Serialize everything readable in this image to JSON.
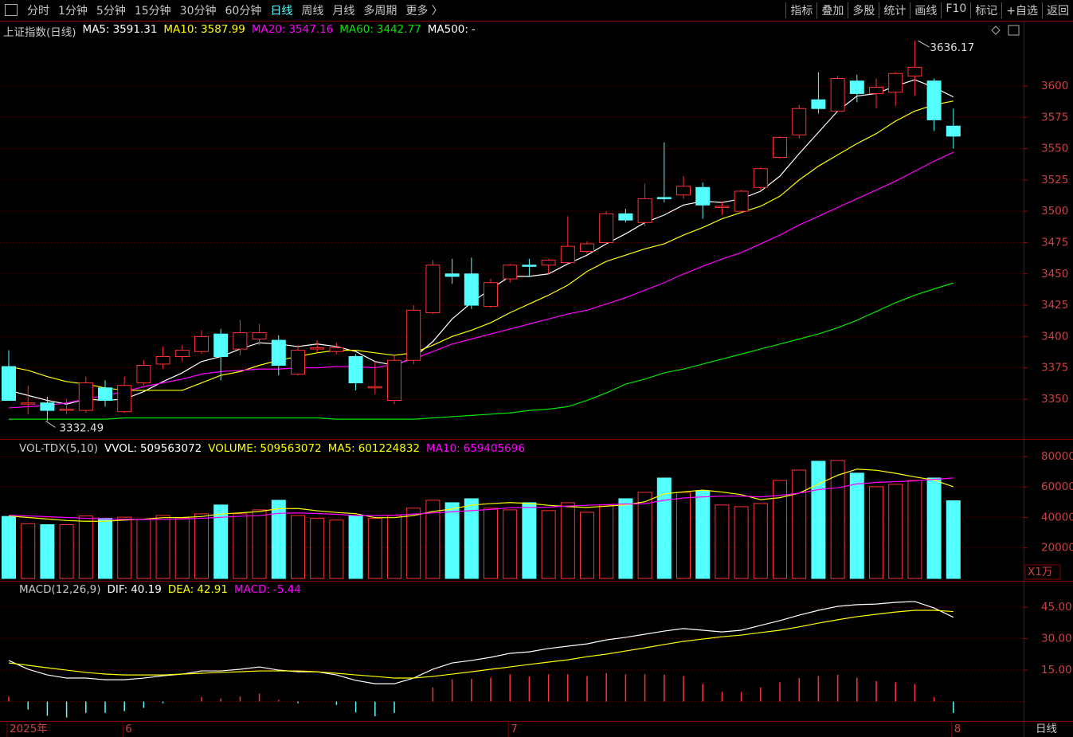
{
  "toolbar": {
    "tabs": [
      "分时",
      "1分钟",
      "5分钟",
      "15分钟",
      "30分钟",
      "60分钟",
      "日线",
      "周线",
      "月线",
      "多周期",
      "更多 〉"
    ],
    "tools": [
      "指标",
      "叠加",
      "多股",
      "统计",
      "画线",
      "F10",
      "标记",
      "+自选",
      "返回"
    ]
  },
  "status": "日线",
  "chart_data": [
    {
      "type": "candlestick",
      "title": "上证指数(日线)",
      "up_color": "#ff3232",
      "down_color": "#54ffff",
      "open": [
        3376,
        3346,
        3347,
        3341,
        3341,
        3359,
        3340,
        3363,
        3378,
        3384,
        3388,
        3402,
        3390,
        3398,
        3397,
        3370,
        3390,
        3388,
        3384,
        3359,
        3349,
        3381,
        3419,
        3450,
        3450,
        3424,
        3446,
        3457,
        3457,
        3459,
        3468,
        3475,
        3498,
        3491,
        3511,
        3513,
        3519,
        3503,
        3500,
        3519,
        3543,
        3561,
        3589,
        3580,
        3604,
        3594,
        3595,
        3608,
        3604,
        3568
      ],
      "high": [
        3389,
        3361,
        3352,
        3350,
        3368,
        3365,
        3368,
        3381,
        3392,
        3393,
        3405,
        3406,
        3413,
        3410,
        3401,
        3393,
        3397,
        3395,
        3386,
        3380,
        3385,
        3425,
        3461,
        3462,
        3463,
        3446,
        3458,
        3462,
        3462,
        3496,
        3476,
        3500,
        3502,
        3522,
        3555,
        3528,
        3523,
        3508,
        3517,
        3535,
        3560,
        3585,
        3611,
        3608,
        3609,
        3606,
        3611,
        3636.17,
        3606,
        3582
      ],
      "low": [
        3349,
        3338,
        3332.49,
        3338,
        3339,
        3344,
        3339,
        3361,
        3374,
        3380,
        3386,
        3365,
        3385,
        3393,
        3369,
        3369,
        3387,
        3386,
        3357,
        3354,
        3346,
        3378,
        3418,
        3442,
        3422,
        3423,
        3443,
        3448,
        3450,
        3458,
        3466,
        3474,
        3491,
        3488,
        3507,
        3510,
        3494,
        3497,
        3499,
        3517,
        3542,
        3558,
        3578,
        3579,
        3587,
        3582,
        3584,
        3592,
        3564,
        3550
      ],
      "close": [
        3349,
        3347,
        3341,
        3342,
        3363,
        3349,
        3361,
        3377,
        3384,
        3389,
        3400,
        3384,
        3403,
        3403,
        3377,
        3389,
        3391,
        3391,
        3363,
        3360,
        3381,
        3421,
        3457,
        3448,
        3425,
        3443,
        3457,
        3456,
        3461,
        3472,
        3474,
        3498,
        3493,
        3510,
        3510,
        3520,
        3505,
        3504,
        3516,
        3534,
        3559,
        3582,
        3582,
        3606,
        3594,
        3599,
        3610,
        3615,
        3573,
        3560
      ],
      "series": [
        {
          "name": "MA5:",
          "color": "#ffffff",
          "latest": 3591.31,
          "values": [
            3357,
            3353,
            3349,
            3346,
            3350,
            3349,
            3350,
            3356,
            3364,
            3371,
            3380,
            3384,
            3390,
            3395,
            3394,
            3392,
            3394,
            3392,
            3388,
            3380,
            3377,
            3383,
            3396,
            3414,
            3427,
            3438,
            3448,
            3448,
            3450,
            3458,
            3465,
            3474,
            3482,
            3491,
            3497,
            3505,
            3508,
            3507,
            3510,
            3516,
            3528,
            3546,
            3563,
            3580,
            3592,
            3594,
            3600,
            3605,
            3599,
            3591.31
          ]
        },
        {
          "name": "MA10:",
          "color": "#ffff00",
          "latest": 3587.99,
          "values": [
            3376,
            3373,
            3368,
            3364,
            3362,
            3359,
            3357,
            3357,
            3357,
            3357,
            3363,
            3369,
            3372,
            3377,
            3381,
            3384,
            3387,
            3389,
            3389,
            3387,
            3385,
            3387,
            3393,
            3400,
            3405,
            3411,
            3419,
            3426,
            3433,
            3441,
            3452,
            3460,
            3465,
            3470,
            3474,
            3481,
            3487,
            3494,
            3499,
            3504,
            3512,
            3525,
            3536,
            3545,
            3554,
            3562,
            3572,
            3580,
            3585,
            3587.99
          ]
        },
        {
          "name": "MA20:",
          "color": "#ff00ff",
          "latest": 3547.16,
          "values": [
            3343,
            3344,
            3345,
            3347,
            3350,
            3353,
            3356,
            3360,
            3363,
            3366,
            3370,
            3372,
            3373,
            3374,
            3374,
            3375,
            3375,
            3376,
            3376,
            3375,
            3378,
            3382,
            3388,
            3394,
            3398,
            3402,
            3406,
            3410,
            3414,
            3418,
            3421,
            3426,
            3431,
            3437,
            3443,
            3450,
            3456,
            3462,
            3467,
            3474,
            3481,
            3489,
            3496,
            3503,
            3510,
            3517,
            3524,
            3532,
            3540,
            3547.16
          ]
        },
        {
          "name": "MA60:",
          "color": "#00e600",
          "latest": 3442.77,
          "values": [
            3334,
            3334,
            3334,
            3334,
            3334,
            3334,
            3335,
            3335,
            3335,
            3335,
            3335,
            3335,
            3335,
            3335,
            3335,
            3335,
            3335,
            3334,
            3334,
            3334,
            3334,
            3334,
            3335,
            3336,
            3337,
            3338,
            3339,
            3341,
            3342,
            3344,
            3349,
            3355,
            3362,
            3366,
            3371,
            3374,
            3378,
            3382,
            3386,
            3390,
            3394,
            3398,
            3402,
            3407,
            3413,
            3420,
            3427,
            3433,
            3438,
            3442.77
          ]
        }
      ],
      "legend_after": [
        {
          "label": "MA500:",
          "value_label": "-",
          "color": "#ffffff"
        }
      ],
      "ylim": [
        3318.8,
        3651.5
      ],
      "yticks": [
        3350,
        3375,
        3400,
        3425,
        3450,
        3475,
        3500,
        3525,
        3550,
        3575,
        3600
      ],
      "grid": true
    },
    {
      "type": "bar",
      "title": "VOL-TDX(5,10)",
      "unit_label": "X1万",
      "values": [
        40700,
        35900,
        35300,
        35300,
        41000,
        39400,
        40200,
        38700,
        41300,
        39700,
        42400,
        48200,
        42400,
        45000,
        51300,
        41300,
        39400,
        38300,
        41300,
        39400,
        41300,
        46100,
        51300,
        49700,
        52300,
        46100,
        45000,
        49700,
        44500,
        49700,
        43400,
        48200,
        52300,
        56500,
        65900,
        56500,
        57600,
        48200,
        47100,
        49200,
        64300,
        71100,
        76900,
        77400,
        69100,
        60200,
        61800,
        64300,
        65900,
        50956
      ],
      "legend_before": [
        {
          "label": "VVOL:",
          "value": 509563072,
          "color": "#ffffff"
        },
        {
          "label": "VOLUME:",
          "value": 509563072,
          "color": "#ffff00"
        }
      ],
      "series": [
        {
          "name": "MA5:",
          "color": "#ffff00",
          "latest": 601224832,
          "values": [
            41000,
            40000,
            39000,
            38000,
            37500,
            37500,
            38300,
            38900,
            39900,
            40000,
            40600,
            42300,
            43000,
            43900,
            45800,
            45900,
            44400,
            43300,
            42500,
            39900,
            39900,
            41300,
            43900,
            45600,
            48100,
            49100,
            49800,
            49200,
            48000,
            47100,
            46600,
            47400,
            48300,
            50300,
            55500,
            56800,
            58000,
            56700,
            55000,
            51700,
            53000,
            56000,
            61900,
            67700,
            71700,
            71000,
            69000,
            66600,
            64600,
            60122
          ]
        },
        {
          "name": "MA10:",
          "color": "#ff00ff",
          "latest": 659405696,
          "values": [
            41500,
            41000,
            40500,
            40000,
            39500,
            39000,
            38800,
            38700,
            38800,
            39000,
            39500,
            40100,
            40800,
            41200,
            42700,
            43000,
            42600,
            42100,
            41300,
            41300,
            41500,
            42200,
            43000,
            43700,
            44500,
            45300,
            46400,
            46600,
            46800,
            47500,
            48000,
            48400,
            48800,
            49000,
            51300,
            52800,
            53500,
            54000,
            54000,
            53500,
            54500,
            56000,
            58300,
            59500,
            62000,
            63000,
            63500,
            64000,
            65000,
            65941
          ]
        }
      ],
      "ylim": [
        0,
        90435
      ],
      "yticks": [
        20000,
        40000,
        60000,
        80000
      ]
    },
    {
      "type": "line",
      "title": "MACD(12,26,9)",
      "series": [
        {
          "name": "DIF:",
          "color": "#ffffff",
          "latest": 40.19,
          "values": [
            19.6,
            15.4,
            12.7,
            11.2,
            11.2,
            10.4,
            10.4,
            11.2,
            12.3,
            13.1,
            14.6,
            14.6,
            15.4,
            16.5,
            15,
            14.2,
            14.2,
            12.7,
            10.1,
            8.5,
            8.5,
            11.2,
            15.4,
            18.4,
            19.6,
            21.1,
            23,
            23.7,
            25.3,
            26.4,
            27.5,
            29.4,
            30.6,
            32.1,
            33.6,
            34.8,
            34,
            33.2,
            34,
            36.3,
            38.6,
            41.2,
            43.5,
            45.4,
            46.2,
            46.5,
            47.3,
            47.7,
            44.6,
            40.19
          ]
        },
        {
          "name": "DEA:",
          "color": "#ffff00",
          "latest": 42.91,
          "values": [
            18.4,
            17.3,
            16.1,
            15,
            13.9,
            13.1,
            12.7,
            12.7,
            12.7,
            13.1,
            13.5,
            13.9,
            14.2,
            14.6,
            14.6,
            14.6,
            14.2,
            13.5,
            12.7,
            12,
            11.2,
            11.2,
            12,
            13.1,
            14.2,
            15.4,
            16.5,
            17.7,
            18.8,
            19.9,
            21.4,
            22.6,
            24.1,
            25.6,
            27.2,
            28.7,
            29.8,
            30.9,
            31.7,
            32.9,
            34,
            35.6,
            37.4,
            39,
            40.5,
            41.6,
            42.7,
            43.5,
            43.5,
            42.91
          ]
        }
      ],
      "bars": {
        "name": "MACD:",
        "color": "#ff00ff",
        "latest": -5.44,
        "up_color": "#ff3232",
        "down_color": "#54ffff",
        "values": [
          2.4,
          -3.8,
          -6.8,
          -7.6,
          -5.4,
          -5.4,
          -4.6,
          -3,
          -0.8,
          0,
          2.2,
          1.4,
          2.4,
          3.8,
          0.8,
          -0.8,
          0,
          -1.6,
          -5.2,
          -7,
          -5.4,
          0,
          6.8,
          10.6,
          10.8,
          11.4,
          13,
          12,
          13,
          13,
          12.2,
          13.6,
          13,
          13,
          12.8,
          12.2,
          8.4,
          4.6,
          4.6,
          6.8,
          9.2,
          11.2,
          12.2,
          12.8,
          11.4,
          9.8,
          9.2,
          8.4,
          2.2,
          -5.44
        ]
      },
      "categories": [
        "2025年",
        null,
        null,
        null,
        null,
        null,
        "6",
        null,
        null,
        null,
        null,
        null,
        null,
        null,
        null,
        null,
        null,
        null,
        null,
        null,
        null,
        null,
        null,
        null,
        null,
        null,
        "7",
        null,
        null,
        null,
        null,
        null,
        null,
        null,
        null,
        null,
        null,
        null,
        null,
        null,
        null,
        null,
        null,
        null,
        null,
        null,
        null,
        null,
        null,
        "8"
      ],
      "ylim": [
        -9.3,
        56.8
      ],
      "yticks": [
        {
          "value": 15,
          "label": "15.00"
        },
        {
          "value": 30,
          "label": "30.00"
        },
        {
          "value": 45,
          "label": "45.00"
        }
      ]
    }
  ]
}
